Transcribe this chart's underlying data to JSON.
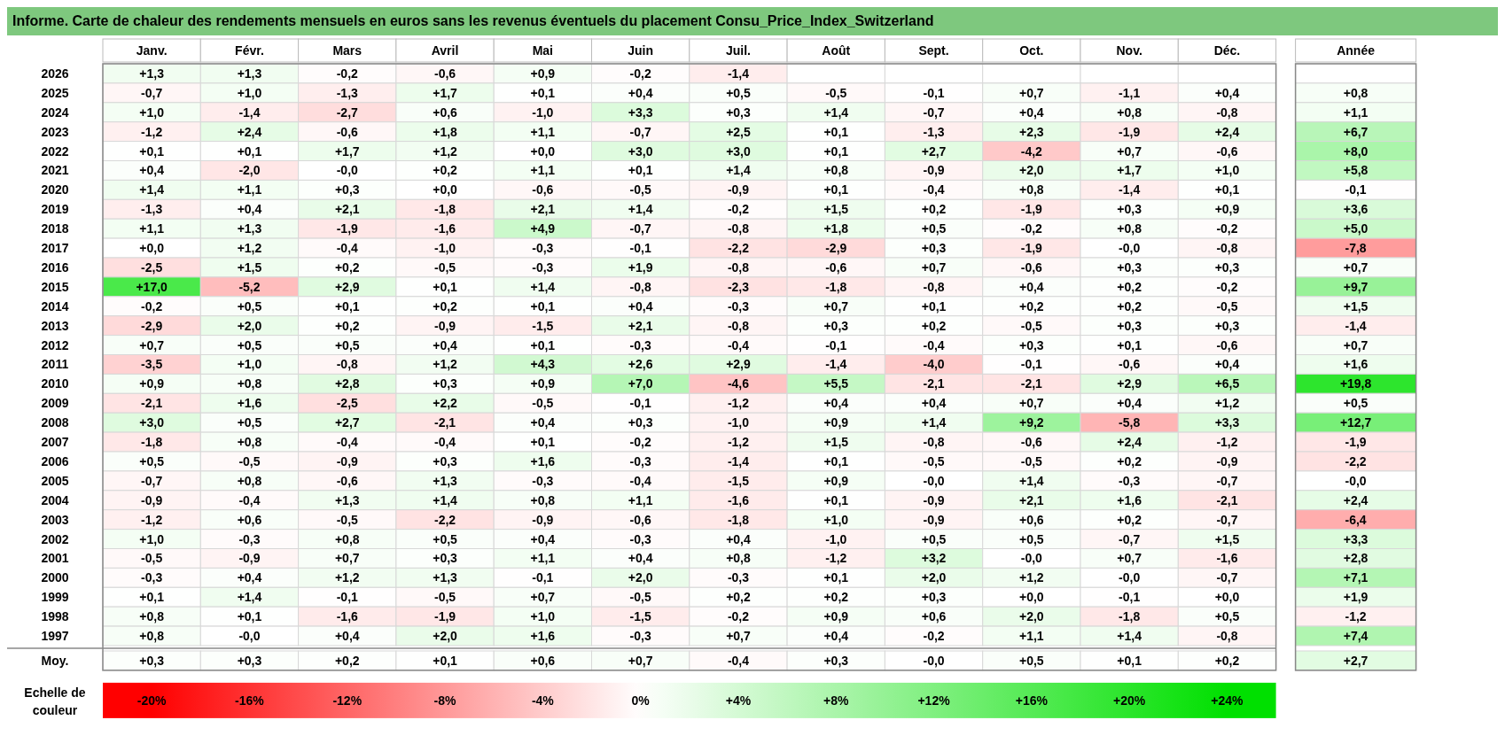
{
  "chart_data": {
    "type": "heatmap",
    "title": "Informe. Carte de chaleur des rendements mensuels en euros sans les revenus éventuels du placement Consu_Price_Index_Switzerland",
    "clabel": "Echelle de couleur",
    "categories": [
      "Janv.",
      "Févr.",
      "Mars",
      "Avril",
      "Mai",
      "Juin",
      "Juil.",
      "Août",
      "Sept.",
      "Oct.",
      "Nov.",
      "Déc.",
      "Année"
    ],
    "y_categories": [
      "2026",
      "2025",
      "2024",
      "2023",
      "2022",
      "2021",
      "2020",
      "2019",
      "2018",
      "2017",
      "2016",
      "2015",
      "2014",
      "2013",
      "2012",
      "2011",
      "2010",
      "2009",
      "2008",
      "2007",
      "2006",
      "2005",
      "2004",
      "2003",
      "2002",
      "2001",
      "2000",
      "1999",
      "1998",
      "1997",
      "Moy."
    ],
    "clim": [
      -20,
      24
    ],
    "cticks": [
      {
        "value": -20,
        "label": "-20%"
      },
      {
        "value": -16,
        "label": "-16%"
      },
      {
        "value": -12,
        "label": "-12%"
      },
      {
        "value": -8,
        "label": "-8%"
      },
      {
        "value": -4,
        "label": "-4%"
      },
      {
        "value": 0,
        "label": "0%"
      },
      {
        "value": 4,
        "label": "+4%"
      },
      {
        "value": 8,
        "label": "+8%"
      },
      {
        "value": 12,
        "label": "+12%"
      },
      {
        "value": 16,
        "label": "+16%"
      },
      {
        "value": 20,
        "label": "+20%"
      },
      {
        "value": 24,
        "label": "+24%"
      }
    ],
    "cells": [
      [
        1.3,
        1.3,
        -0.2,
        -0.6,
        0.9,
        -0.2,
        -1.4,
        null,
        null,
        null,
        null,
        null,
        null
      ],
      [
        -0.7,
        1.0,
        -1.3,
        1.7,
        0.1,
        0.4,
        0.5,
        -0.5,
        -0.1,
        0.7,
        -1.1,
        0.4,
        0.8
      ],
      [
        1.0,
        -1.4,
        -2.7,
        0.6,
        -1.0,
        3.3,
        0.3,
        1.4,
        -0.7,
        0.4,
        0.8,
        -0.8,
        1.1
      ],
      [
        -1.2,
        2.4,
        -0.6,
        1.8,
        1.1,
        -0.7,
        2.5,
        0.1,
        -1.3,
        2.3,
        -1.9,
        2.4,
        6.7
      ],
      [
        0.1,
        0.1,
        1.7,
        1.2,
        0.0,
        3.0,
        3.0,
        0.1,
        2.7,
        -4.2,
        0.7,
        -0.6,
        8.0
      ],
      [
        0.4,
        -2.0,
        0.0,
        0.2,
        1.1,
        0.1,
        1.4,
        0.8,
        -0.9,
        2.0,
        1.7,
        1.0,
        5.8
      ],
      [
        1.4,
        1.1,
        0.3,
        0.0,
        -0.6,
        -0.5,
        -0.9,
        0.1,
        -0.4,
        0.8,
        -1.4,
        0.1,
        -0.1
      ],
      [
        -1.3,
        0.4,
        2.1,
        -1.8,
        2.1,
        1.4,
        -0.2,
        1.5,
        0.2,
        -1.9,
        0.3,
        0.9,
        3.6
      ],
      [
        1.1,
        1.3,
        -1.9,
        -1.6,
        4.9,
        -0.7,
        -0.8,
        1.8,
        0.5,
        -0.2,
        0.8,
        -0.2,
        5.0
      ],
      [
        0.0,
        1.2,
        -0.4,
        -1.0,
        -0.3,
        -0.1,
        -2.2,
        -2.9,
        0.3,
        -1.9,
        0.0,
        -0.8,
        -7.8
      ],
      [
        -2.5,
        1.5,
        0.2,
        -0.5,
        -0.3,
        1.9,
        -0.8,
        -0.6,
        0.7,
        -0.6,
        0.3,
        0.3,
        0.7
      ],
      [
        17.0,
        -5.2,
        2.9,
        0.1,
        1.4,
        -0.8,
        -2.3,
        -1.8,
        -0.8,
        0.4,
        0.2,
        -0.2,
        9.7
      ],
      [
        -0.2,
        0.5,
        0.1,
        0.2,
        0.1,
        0.4,
        -0.3,
        0.7,
        0.1,
        0.2,
        0.2,
        -0.5,
        1.5
      ],
      [
        -2.9,
        2.0,
        0.2,
        -0.9,
        -1.5,
        2.1,
        -0.8,
        0.3,
        0.2,
        -0.5,
        0.3,
        0.3,
        -1.4
      ],
      [
        0.7,
        0.5,
        0.5,
        0.4,
        0.1,
        -0.3,
        -0.4,
        -0.1,
        -0.4,
        0.3,
        0.1,
        -0.6,
        0.7
      ],
      [
        -3.5,
        1.0,
        -0.8,
        1.2,
        4.3,
        2.6,
        2.9,
        -1.4,
        -4.0,
        -0.1,
        -0.6,
        0.4,
        1.6
      ],
      [
        0.9,
        0.8,
        2.8,
        0.3,
        0.9,
        7.0,
        -4.6,
        5.5,
        -2.1,
        -2.1,
        2.9,
        6.5,
        19.8
      ],
      [
        -2.1,
        1.6,
        -2.5,
        2.2,
        -0.5,
        -0.1,
        -1.2,
        0.4,
        0.4,
        0.7,
        0.4,
        1.2,
        0.5
      ],
      [
        3.0,
        0.5,
        2.7,
        -2.1,
        0.4,
        0.3,
        -1.0,
        0.9,
        1.4,
        9.2,
        -5.8,
        3.3,
        12.7
      ],
      [
        -1.8,
        0.8,
        -0.4,
        -0.4,
        0.1,
        -0.2,
        -1.2,
        1.5,
        -0.8,
        -0.6,
        2.4,
        -1.2,
        -1.9
      ],
      [
        0.5,
        -0.5,
        -0.9,
        0.3,
        1.6,
        -0.3,
        -1.4,
        0.1,
        -0.5,
        -0.5,
        0.2,
        -0.9,
        -2.2
      ],
      [
        -0.7,
        0.8,
        -0.6,
        1.3,
        -0.3,
        -0.4,
        -1.5,
        0.9,
        0.0,
        1.4,
        -0.3,
        -0.7,
        0.0
      ],
      [
        -0.9,
        -0.4,
        1.3,
        1.4,
        0.8,
        1.1,
        -1.6,
        0.1,
        -0.9,
        2.1,
        1.6,
        -2.1,
        2.4
      ],
      [
        -1.2,
        0.6,
        -0.5,
        -2.2,
        -0.9,
        -0.6,
        -1.8,
        1.0,
        -0.9,
        0.6,
        0.2,
        -0.7,
        -6.4
      ],
      [
        1.0,
        -0.3,
        0.8,
        0.5,
        0.4,
        -0.3,
        0.4,
        -1.0,
        0.5,
        0.5,
        -0.7,
        1.5,
        3.3
      ],
      [
        -0.5,
        -0.9,
        0.7,
        0.3,
        1.1,
        0.4,
        0.8,
        -1.2,
        3.2,
        0.0,
        0.7,
        -1.6,
        2.8
      ],
      [
        -0.3,
        0.4,
        1.2,
        1.3,
        -0.1,
        2.0,
        -0.3,
        0.1,
        2.0,
        1.2,
        0.0,
        -0.7,
        7.1
      ],
      [
        0.1,
        1.4,
        -0.1,
        -0.5,
        0.7,
        -0.5,
        0.2,
        0.2,
        0.3,
        0.0,
        -0.1,
        0.0,
        1.9
      ],
      [
        0.8,
        0.1,
        -1.6,
        -1.9,
        1.0,
        -1.5,
        -0.2,
        0.9,
        0.6,
        2.0,
        -1.8,
        0.5,
        -1.2
      ],
      [
        0.8,
        0.0,
        0.4,
        2.0,
        1.6,
        -0.3,
        0.7,
        0.4,
        -0.2,
        1.1,
        1.4,
        -0.8,
        7.4
      ],
      [
        0.3,
        0.3,
        0.2,
        0.1,
        0.6,
        0.7,
        -0.4,
        0.3,
        0.0,
        0.5,
        0.1,
        0.2,
        2.7
      ]
    ],
    "cell_labels": [
      [
        "+1,3",
        "+1,3",
        "-0,2",
        "-0,6",
        "+0,9",
        "-0,2",
        "-1,4",
        null,
        null,
        null,
        null,
        null,
        null
      ],
      [
        "-0,7",
        "+1,0",
        "-1,3",
        "+1,7",
        "+0,1",
        "+0,4",
        "+0,5",
        "-0,5",
        "-0,1",
        "+0,7",
        "-1,1",
        "+0,4",
        "+0,8"
      ],
      [
        "+1,0",
        "-1,4",
        "-2,7",
        "+0,6",
        "-1,0",
        "+3,3",
        "+0,3",
        "+1,4",
        "-0,7",
        "+0,4",
        "+0,8",
        "-0,8",
        "+1,1"
      ],
      [
        "-1,2",
        "+2,4",
        "-0,6",
        "+1,8",
        "+1,1",
        "-0,7",
        "+2,5",
        "+0,1",
        "-1,3",
        "+2,3",
        "-1,9",
        "+2,4",
        "+6,7"
      ],
      [
        "+0,1",
        "+0,1",
        "+1,7",
        "+1,2",
        "+0,0",
        "+3,0",
        "+3,0",
        "+0,1",
        "+2,7",
        "-4,2",
        "+0,7",
        "-0,6",
        "+8,0"
      ],
      [
        "+0,4",
        "-2,0",
        "-0,0",
        "+0,2",
        "+1,1",
        "+0,1",
        "+1,4",
        "+0,8",
        "-0,9",
        "+2,0",
        "+1,7",
        "+1,0",
        "+5,8"
      ],
      [
        "+1,4",
        "+1,1",
        "+0,3",
        "+0,0",
        "-0,6",
        "-0,5",
        "-0,9",
        "+0,1",
        "-0,4",
        "+0,8",
        "-1,4",
        "+0,1",
        "-0,1"
      ],
      [
        "-1,3",
        "+0,4",
        "+2,1",
        "-1,8",
        "+2,1",
        "+1,4",
        "-0,2",
        "+1,5",
        "+0,2",
        "-1,9",
        "+0,3",
        "+0,9",
        "+3,6"
      ],
      [
        "+1,1",
        "+1,3",
        "-1,9",
        "-1,6",
        "+4,9",
        "-0,7",
        "-0,8",
        "+1,8",
        "+0,5",
        "-0,2",
        "+0,8",
        "-0,2",
        "+5,0"
      ],
      [
        "+0,0",
        "+1,2",
        "-0,4",
        "-1,0",
        "-0,3",
        "-0,1",
        "-2,2",
        "-2,9",
        "+0,3",
        "-1,9",
        "-0,0",
        "-0,8",
        "-7,8"
      ],
      [
        "-2,5",
        "+1,5",
        "+0,2",
        "-0,5",
        "-0,3",
        "+1,9",
        "-0,8",
        "-0,6",
        "+0,7",
        "-0,6",
        "+0,3",
        "+0,3",
        "+0,7"
      ],
      [
        "+17,0",
        "-5,2",
        "+2,9",
        "+0,1",
        "+1,4",
        "-0,8",
        "-2,3",
        "-1,8",
        "-0,8",
        "+0,4",
        "+0,2",
        "-0,2",
        "+9,7"
      ],
      [
        "-0,2",
        "+0,5",
        "+0,1",
        "+0,2",
        "+0,1",
        "+0,4",
        "-0,3",
        "+0,7",
        "+0,1",
        "+0,2",
        "+0,2",
        "-0,5",
        "+1,5"
      ],
      [
        "-2,9",
        "+2,0",
        "+0,2",
        "-0,9",
        "-1,5",
        "+2,1",
        "-0,8",
        "+0,3",
        "+0,2",
        "-0,5",
        "+0,3",
        "+0,3",
        "-1,4"
      ],
      [
        "+0,7",
        "+0,5",
        "+0,5",
        "+0,4",
        "+0,1",
        "-0,3",
        "-0,4",
        "-0,1",
        "-0,4",
        "+0,3",
        "+0,1",
        "-0,6",
        "+0,7"
      ],
      [
        "-3,5",
        "+1,0",
        "-0,8",
        "+1,2",
        "+4,3",
        "+2,6",
        "+2,9",
        "-1,4",
        "-4,0",
        "-0,1",
        "-0,6",
        "+0,4",
        "+1,6"
      ],
      [
        "+0,9",
        "+0,8",
        "+2,8",
        "+0,3",
        "+0,9",
        "+7,0",
        "-4,6",
        "+5,5",
        "-2,1",
        "-2,1",
        "+2,9",
        "+6,5",
        "+19,8"
      ],
      [
        "-2,1",
        "+1,6",
        "-2,5",
        "+2,2",
        "-0,5",
        "-0,1",
        "-1,2",
        "+0,4",
        "+0,4",
        "+0,7",
        "+0,4",
        "+1,2",
        "+0,5"
      ],
      [
        "+3,0",
        "+0,5",
        "+2,7",
        "-2,1",
        "+0,4",
        "+0,3",
        "-1,0",
        "+0,9",
        "+1,4",
        "+9,2",
        "-5,8",
        "+3,3",
        "+12,7"
      ],
      [
        "-1,8",
        "+0,8",
        "-0,4",
        "-0,4",
        "+0,1",
        "-0,2",
        "-1,2",
        "+1,5",
        "-0,8",
        "-0,6",
        "+2,4",
        "-1,2",
        "-1,9"
      ],
      [
        "+0,5",
        "-0,5",
        "-0,9",
        "+0,3",
        "+1,6",
        "-0,3",
        "-1,4",
        "+0,1",
        "-0,5",
        "-0,5",
        "+0,2",
        "-0,9",
        "-2,2"
      ],
      [
        "-0,7",
        "+0,8",
        "-0,6",
        "+1,3",
        "-0,3",
        "-0,4",
        "-1,5",
        "+0,9",
        "-0,0",
        "+1,4",
        "-0,3",
        "-0,7",
        "-0,0"
      ],
      [
        "-0,9",
        "-0,4",
        "+1,3",
        "+1,4",
        "+0,8",
        "+1,1",
        "-1,6",
        "+0,1",
        "-0,9",
        "+2,1",
        "+1,6",
        "-2,1",
        "+2,4"
      ],
      [
        "-1,2",
        "+0,6",
        "-0,5",
        "-2,2",
        "-0,9",
        "-0,6",
        "-1,8",
        "+1,0",
        "-0,9",
        "+0,6",
        "+0,2",
        "-0,7",
        "-6,4"
      ],
      [
        "+1,0",
        "-0,3",
        "+0,8",
        "+0,5",
        "+0,4",
        "-0,3",
        "+0,4",
        "-1,0",
        "+0,5",
        "+0,5",
        "-0,7",
        "+1,5",
        "+3,3"
      ],
      [
        "-0,5",
        "-0,9",
        "+0,7",
        "+0,3",
        "+1,1",
        "+0,4",
        "+0,8",
        "-1,2",
        "+3,2",
        "-0,0",
        "+0,7",
        "-1,6",
        "+2,8"
      ],
      [
        "-0,3",
        "+0,4",
        "+1,2",
        "+1,3",
        "-0,1",
        "+2,0",
        "-0,3",
        "+0,1",
        "+2,0",
        "+1,2",
        "-0,0",
        "-0,7",
        "+7,1"
      ],
      [
        "+0,1",
        "+1,4",
        "-0,1",
        "-0,5",
        "+0,7",
        "-0,5",
        "+0,2",
        "+0,2",
        "+0,3",
        "+0,0",
        "-0,1",
        "+0,0",
        "+1,9"
      ],
      [
        "+0,8",
        "+0,1",
        "-1,6",
        "-1,9",
        "+1,0",
        "-1,5",
        "-0,2",
        "+0,9",
        "+0,6",
        "+2,0",
        "-1,8",
        "+0,5",
        "-1,2"
      ],
      [
        "+0,8",
        "-0,0",
        "+0,4",
        "+2,0",
        "+1,6",
        "-0,3",
        "+0,7",
        "+0,4",
        "-0,2",
        "+1,1",
        "+1,4",
        "-0,8",
        "+7,4"
      ],
      [
        "+0,3",
        "+0,3",
        "+0,2",
        "+0,1",
        "+0,6",
        "+0,7",
        "-0,4",
        "+0,3",
        "-0,0",
        "+0,5",
        "+0,1",
        "+0,2",
        "+2,7"
      ]
    ]
  }
}
